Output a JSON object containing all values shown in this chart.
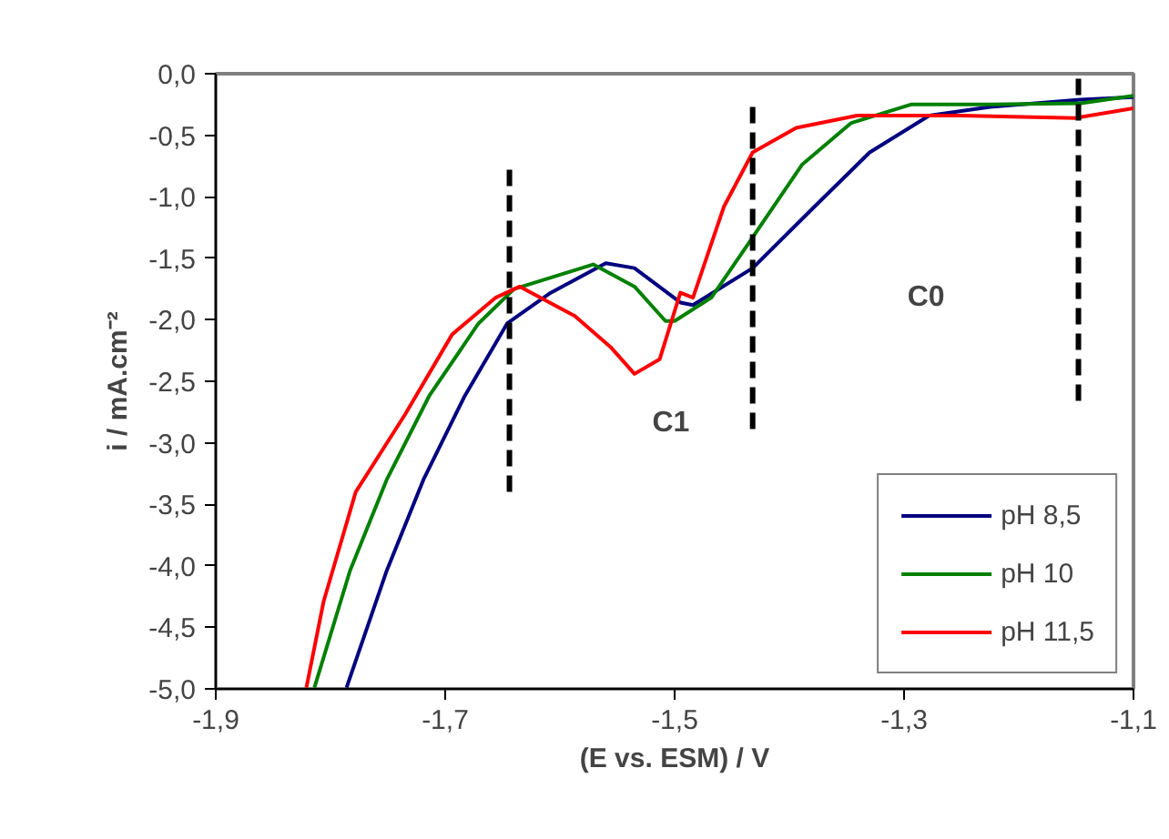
{
  "chart_data": {
    "type": "line",
    "xlabel": "(E vs. ESM) / V",
    "ylabel": "i / mA.cm⁻²",
    "xlim": [
      -1.9,
      -1.1
    ],
    "xticks": [
      {
        "value": -1.9,
        "label": "-1,9"
      },
      {
        "value": -1.7,
        "label": "-1,7"
      },
      {
        "value": -1.5,
        "label": "-1,5"
      },
      {
        "value": -1.3,
        "label": "-1,3"
      },
      {
        "value": -1.1,
        "label": "-1,1"
      }
    ],
    "ylim": [
      -5,
      0
    ],
    "yticks": [
      {
        "value": 0,
        "label": "0,0"
      },
      {
        "value": -0.5,
        "label": "-0,5"
      },
      {
        "value": -1,
        "label": "-1,0"
      },
      {
        "value": -1.5,
        "label": "-1,5"
      },
      {
        "value": -2,
        "label": "-2,0"
      },
      {
        "value": -2.5,
        "label": "-2,5"
      },
      {
        "value": -3,
        "label": "-3,0"
      },
      {
        "value": -3.5,
        "label": "-3,5"
      },
      {
        "value": -4,
        "label": "-4,0"
      },
      {
        "value": -4.5,
        "label": "-4,5"
      },
      {
        "value": -5,
        "label": "-5,0"
      }
    ],
    "grid": false,
    "legend": "bottom right",
    "marker": "none",
    "annotations": [
      "C1",
      "C0"
    ],
    "series": [
      {
        "name": "pH 8,5",
        "color": "#000080",
        "x": [
          -1.786,
          -1.751,
          -1.719,
          -1.683,
          -1.646,
          -1.608,
          -1.56,
          -1.535,
          -1.495,
          -1.484,
          -1.432,
          -1.378,
          -1.33,
          -1.278,
          -1.225,
          -1.146,
          -1.1
        ],
        "values": [
          -4.99,
          -4.04,
          -3.3,
          -2.62,
          -2.03,
          -1.78,
          -1.54,
          -1.58,
          -1.86,
          -1.88,
          -1.58,
          -1.08,
          -0.64,
          -0.34,
          -0.27,
          -0.21,
          -0.19
        ]
      },
      {
        "name": "pH 10",
        "color": "#008000",
        "x": [
          -1.814,
          -1.783,
          -1.751,
          -1.714,
          -1.671,
          -1.64,
          -1.571,
          -1.535,
          -1.508,
          -1.5,
          -1.468,
          -1.432,
          -1.389,
          -1.346,
          -1.294,
          -1.225,
          -1.146,
          -1.1
        ],
        "values": [
          -4.99,
          -4.04,
          -3.3,
          -2.62,
          -2.03,
          -1.75,
          -1.55,
          -1.73,
          -2.01,
          -2.01,
          -1.82,
          -1.33,
          -0.74,
          -0.4,
          -0.25,
          -0.25,
          -0.24,
          -0.18
        ]
      },
      {
        "name": "pH 11,5",
        "color": "#ff0000",
        "x": [
          -1.821,
          -1.806,
          -1.778,
          -1.735,
          -1.694,
          -1.656,
          -1.635,
          -1.587,
          -1.556,
          -1.535,
          -1.513,
          -1.495,
          -1.484,
          -1.457,
          -1.432,
          -1.394,
          -1.341,
          -1.251,
          -1.151,
          -1.1
        ],
        "values": [
          -4.99,
          -4.29,
          -3.4,
          -2.77,
          -2.12,
          -1.82,
          -1.73,
          -1.97,
          -2.22,
          -2.44,
          -2.32,
          -1.78,
          -1.82,
          -1.08,
          -0.64,
          -0.44,
          -0.34,
          -0.34,
          -0.36,
          -0.28
        ]
      },
      {
        "color": "#000000",
        "line_style": "dashed",
        "x": [
          -1.644,
          -1.644
        ],
        "values": [
          -0.78,
          -3.42
        ]
      },
      {
        "color": "#000000",
        "line_style": "dashed",
        "x": [
          -1.432,
          -1.432
        ],
        "values": [
          -0.27,
          -2.9
        ]
      },
      {
        "color": "#000000",
        "line_style": "dashed",
        "x": [
          -1.148,
          -1.148
        ],
        "values": [
          -0.04,
          -2.68
        ]
      }
    ]
  }
}
